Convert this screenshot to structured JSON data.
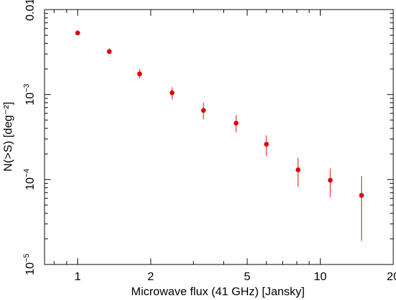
{
  "chart_data": {
    "type": "scatter",
    "title": "",
    "xlabel": "Microwave flux (41 GHz) [Jansky]",
    "ylabel": "N(>S) [deg⁻²]",
    "xscale": "log",
    "yscale": "log",
    "xlim": [
      0.73,
      20
    ],
    "ylim": [
      1e-05,
      0.01
    ],
    "grid": false,
    "legend": "none",
    "marker_color": "#e00000",
    "x_ticks": [
      {
        "value": 1,
        "label": "1"
      },
      {
        "value": 2,
        "label": "2"
      },
      {
        "value": 5,
        "label": "5"
      },
      {
        "value": 10,
        "label": "10"
      },
      {
        "value": 20,
        "label": "20"
      }
    ],
    "y_ticks": [
      {
        "value": 1e-05,
        "base": "10",
        "exp": "−5"
      },
      {
        "value": 0.0001,
        "base": "10",
        "exp": "−4"
      },
      {
        "value": 0.001,
        "base": "10",
        "exp": "−3"
      },
      {
        "value": 0.01,
        "base": "0.01",
        "exp": ""
      }
    ],
    "series": [
      {
        "points": [
          {
            "x": 1.0,
            "y": 0.0053,
            "ylow": 0.005,
            "yhigh": 0.0057
          },
          {
            "x": 1.35,
            "y": 0.0032,
            "ylow": 0.003,
            "yhigh": 0.0035
          },
          {
            "x": 1.8,
            "y": 0.00175,
            "ylow": 0.00155,
            "yhigh": 0.002
          },
          {
            "x": 2.45,
            "y": 0.00105,
            "ylow": 0.00088,
            "yhigh": 0.00122
          },
          {
            "x": 3.3,
            "y": 0.00065,
            "ylow": 0.00051,
            "yhigh": 0.0008
          },
          {
            "x": 4.5,
            "y": 0.00046,
            "ylow": 0.00036,
            "yhigh": 0.00057
          },
          {
            "x": 6.0,
            "y": 0.00026,
            "ylow": 0.00019,
            "yhigh": 0.00033
          },
          {
            "x": 8.1,
            "y": 0.00013,
            "ylow": 8.2e-05,
            "yhigh": 0.00018
          },
          {
            "x": 11.0,
            "y": 9.8e-05,
            "ylow": 6.2e-05,
            "yhigh": 0.000135
          },
          {
            "x": 14.8,
            "y": 6.5e-05,
            "ylow": 1.9e-05,
            "yhigh": 0.00011
          }
        ]
      }
    ]
  }
}
